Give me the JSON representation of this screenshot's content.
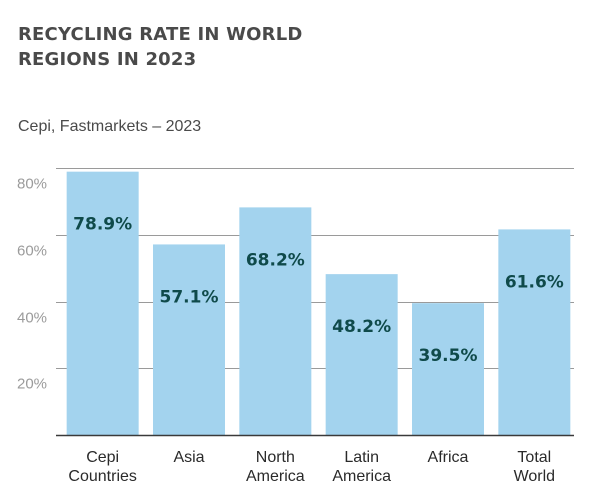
{
  "title": "RECYCLING RATE IN WORLD REGIONS IN 2023",
  "subtitle": "Cepi, Fastmarkets – 2023",
  "colors": {
    "bar": "#a3d3ee",
    "value_label": "#0f4a4a",
    "grid": "#9a9a9a",
    "axis": "#3a3a3a",
    "tick_label": "#9b9b9b",
    "category_label": "#2a2a2a"
  },
  "chart_data": {
    "type": "bar",
    "title": "RECYCLING RATE IN WORLD REGIONS IN 2023",
    "subtitle": "Cepi, Fastmarkets – 2023",
    "categories": [
      [
        "Cepi",
        "Countries"
      ],
      [
        "Asia"
      ],
      [
        "North",
        "America"
      ],
      [
        "Latin",
        "America"
      ],
      [
        "Africa"
      ],
      [
        "Total",
        "World"
      ]
    ],
    "values": [
      78.9,
      57.1,
      68.2,
      48.2,
      39.5,
      61.6
    ],
    "value_labels": [
      "78.9%",
      "57.1%",
      "68.2%",
      "48.2%",
      "39.5%",
      "61.6%"
    ],
    "yticks": [
      20,
      40,
      60,
      80
    ],
    "ytick_labels": [
      "20%",
      "40%",
      "60%",
      "80%"
    ],
    "ylim": [
      0,
      80
    ],
    "grid": true
  }
}
